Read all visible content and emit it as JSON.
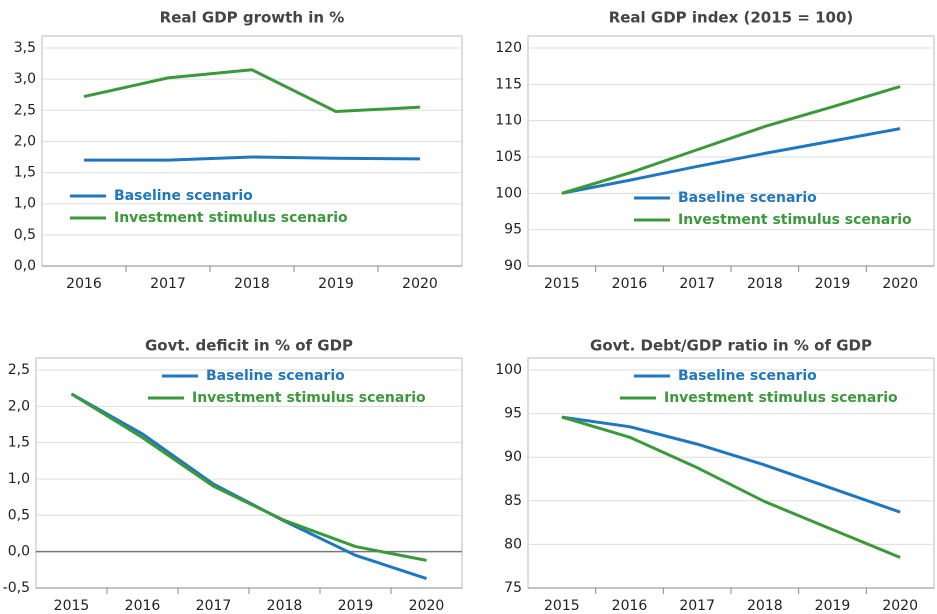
{
  "chart_data": [
    {
      "type": "line",
      "title": "Real GDP growth in %",
      "categories": [
        "2016",
        "2017",
        "2018",
        "2019",
        "2020"
      ],
      "series": [
        {
          "name": "Baseline scenario",
          "color": "#1f77bf",
          "values": [
            1.7,
            1.7,
            1.75,
            1.73,
            1.72
          ]
        },
        {
          "name": "Investment stimulus scenario",
          "color": "#3a9a3a",
          "values": [
            2.72,
            3.02,
            3.15,
            2.48,
            2.55
          ]
        }
      ],
      "ylim": [
        0,
        3.5
      ],
      "yticks": [
        {
          "value": 0,
          "label": "0,0"
        },
        {
          "value": 0.5,
          "label": "0,5"
        },
        {
          "value": 1,
          "label": "1,0"
        },
        {
          "value": 1.5,
          "label": "1,5"
        },
        {
          "value": 2,
          "label": "2,0"
        },
        {
          "value": 2.5,
          "label": "2,5"
        },
        {
          "value": 3,
          "label": "3,0"
        },
        {
          "value": 3.5,
          "label": "3,5"
        }
      ],
      "grid": true,
      "legend": "lower left"
    },
    {
      "type": "line",
      "title": "Real GDP index (2015 = 100)",
      "categories": [
        "2015",
        "2016",
        "2017",
        "2018",
        "2019",
        "2020"
      ],
      "series": [
        {
          "name": "Baseline scenario",
          "color": "#1f77bf",
          "values": [
            100,
            101.8,
            103.7,
            105.5,
            107.2,
            108.9
          ]
        },
        {
          "name": "Investment stimulus scenario",
          "color": "#3a9a3a",
          "values": [
            100,
            102.8,
            106,
            109.2,
            111.9,
            114.7
          ]
        }
      ],
      "ylim": [
        90,
        120
      ],
      "yticks": [
        90,
        95,
        100,
        105,
        110,
        115,
        120
      ],
      "grid": true,
      "legend": "lower right"
    },
    {
      "type": "line",
      "title": "Govt. deficit in % of GDP",
      "categories": [
        "2015",
        "2016",
        "2017",
        "2018",
        "2019",
        "2020"
      ],
      "series": [
        {
          "name": "Baseline scenario",
          "color": "#1f77bf",
          "values": [
            2.17,
            1.62,
            0.93,
            0.42,
            -0.05,
            -0.37
          ]
        },
        {
          "name": "Investment stimulus scenario",
          "color": "#3a9a3a",
          "values": [
            2.17,
            1.57,
            0.9,
            0.43,
            0.07,
            -0.12
          ]
        }
      ],
      "ylim": [
        -0.5,
        2.5
      ],
      "yticks": [
        {
          "value": -0.5,
          "label": "-0,5"
        },
        {
          "value": 0,
          "label": "0,0"
        },
        {
          "value": 0.5,
          "label": "0,5"
        },
        {
          "value": 1,
          "label": "1,0"
        },
        {
          "value": 1.5,
          "label": "1,5"
        },
        {
          "value": 2,
          "label": "2,0"
        },
        {
          "value": 2.5,
          "label": "2,5"
        }
      ],
      "grid": true,
      "legend": "upper right"
    },
    {
      "type": "line",
      "title": "Govt. Debt/GDP ratio in % of GDP",
      "categories": [
        "2015",
        "2016",
        "2017",
        "2018",
        "2019",
        "2020"
      ],
      "series": [
        {
          "name": "Baseline scenario",
          "color": "#1f77bf",
          "values": [
            94.6,
            93.5,
            91.5,
            89.1,
            86.4,
            83.7
          ]
        },
        {
          "name": "Investment stimulus scenario",
          "color": "#3a9a3a",
          "values": [
            94.6,
            92.3,
            88.8,
            84.9,
            81.7,
            78.5
          ]
        }
      ],
      "ylim": [
        75,
        100
      ],
      "yticks": [
        75,
        80,
        85,
        90,
        95,
        100
      ],
      "grid": true,
      "legend": "upper right"
    }
  ]
}
